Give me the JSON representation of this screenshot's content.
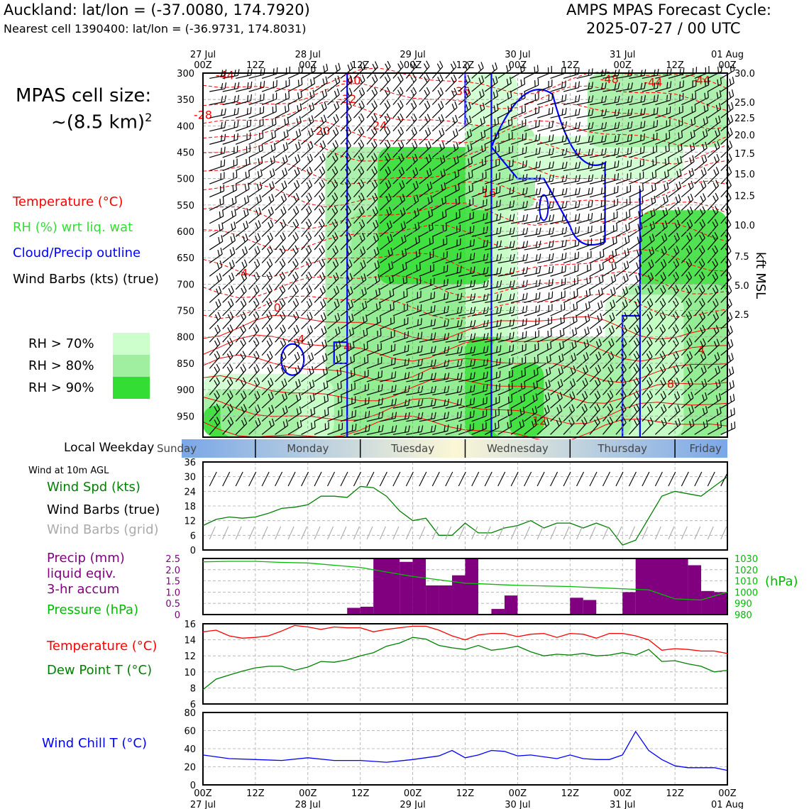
{
  "header": {
    "location_line": "Auckland: lat/lon = (-37.0080, 174.7920)",
    "cell_line": "Nearest cell 1390400: lat/lon = (-36.9731, 174.8031)",
    "cycle_title": "AMPS MPAS Forecast Cycle:",
    "cycle_value": "2025-07-27 / 00 UTC"
  },
  "side": {
    "cell_size_label": "MPAS cell size:",
    "cell_size_value": "~(8.5 km)",
    "cell_size_exp": "2",
    "legend_temp": "Temperature (°C)",
    "legend_rh": "RH (%) wrt liq. wat",
    "legend_cloud": "Cloud/Precip outline",
    "legend_wind": "Wind Barbs (kts) (true)",
    "rh70": "RH > 70%",
    "rh80": "RH > 80%",
    "rh90": "RH > 90%",
    "local_weekday": "Local Weekday",
    "wind_10m": "Wind at 10m AGL",
    "wind_spd": "Wind Spd (kts)",
    "wind_barbs_true": "Wind Barbs (true)",
    "wind_barbs_grid": "Wind Barbs (grid)",
    "precip1": "Precip (mm)",
    "precip2": "liquid eqiv.",
    "precip3": "3-hr accum",
    "pressure": "Pressure (hPa)",
    "temp": "Temperature (°C)",
    "dewpt": "Dew Point T (°C)",
    "windchill": "Wind Chill T (°C)",
    "hpa_unit": "(hPa)",
    "kft_unit": "kft MSL"
  },
  "colors": {
    "temp": "#ff0000",
    "rh_text": "#33dd33",
    "cloud": "#0000ff",
    "green_line": "#008000",
    "precip": "#800080",
    "rh70": "#ccffcc",
    "rh80": "#a0eea0",
    "rh90": "#33dd33",
    "weekday_blue": "#7aa7e8",
    "weekday_cream": "#fbf7d6"
  },
  "chart_data": [
    {
      "type": "area",
      "panel": "cross-section",
      "x_ticks_top": [
        {
          "day": "27 Jul",
          "hour": "00Z"
        },
        {
          "day": "",
          "hour": "12Z"
        },
        {
          "day": "28 Jul",
          "hour": "00Z"
        },
        {
          "day": "",
          "hour": "12Z"
        },
        {
          "day": "29 Jul",
          "hour": "00Z"
        },
        {
          "day": "",
          "hour": "12Z"
        },
        {
          "day": "30 Jul",
          "hour": "00Z"
        },
        {
          "day": "",
          "hour": "12Z"
        },
        {
          "day": "31 Jul",
          "hour": "00Z"
        },
        {
          "day": "",
          "hour": "12Z"
        },
        {
          "day": "01 Aug",
          "hour": "00Z"
        }
      ],
      "xlim_hours": [
        0,
        120
      ],
      "y_pressure_hPa": [
        300,
        350,
        400,
        450,
        500,
        550,
        600,
        650,
        700,
        750,
        800,
        850,
        900,
        950
      ],
      "ylim_hPa": [
        990,
        300
      ],
      "y_kft_ticks": [
        {
          "label": "30.0",
          "hPa": 300
        },
        {
          "label": "25.0",
          "hPa": 355
        },
        {
          "label": "22.5",
          "hPa": 385
        },
        {
          "label": "20.0",
          "hPa": 417
        },
        {
          "label": "17.5",
          "hPa": 452
        },
        {
          "label": "15.0",
          "hPa": 491
        },
        {
          "label": "12.5",
          "hPa": 532
        },
        {
          "label": "10.0",
          "hPa": 588
        },
        {
          "label": "7.5",
          "hPa": 647
        },
        {
          "label": "5.0",
          "hPa": 702
        },
        {
          "label": "2.5",
          "hPa": 757
        }
      ],
      "temp_contour_labels": [
        {
          "text": "-44",
          "x_h": 5,
          "p": 305
        },
        {
          "text": "-40",
          "x_h": 34,
          "p": 315
        },
        {
          "text": "-32",
          "x_h": 33,
          "p": 350
        },
        {
          "text": "-36",
          "x_h": 59,
          "p": 335
        },
        {
          "text": "-48",
          "x_h": 93,
          "p": 312
        },
        {
          "text": "-44",
          "x_h": 103,
          "p": 318
        },
        {
          "text": "-44",
          "x_h": 114,
          "p": 314
        },
        {
          "text": "-28",
          "x_h": 0,
          "p": 380
        },
        {
          "text": "-24",
          "x_h": 40,
          "p": 400
        },
        {
          "text": "-20",
          "x_h": 27,
          "p": 410
        },
        {
          "text": "-16",
          "x_h": 65,
          "p": 528
        },
        {
          "text": "-8",
          "x_h": 93,
          "p": 653
        },
        {
          "text": "-4",
          "x_h": 9,
          "p": 680
        },
        {
          "text": "0",
          "x_h": 17,
          "p": 745
        },
        {
          "text": "4",
          "x_h": 33,
          "p": 820
        },
        {
          "text": "-4",
          "x_h": 22,
          "p": 805
        },
        {
          "text": "4",
          "x_h": 114,
          "p": 825
        },
        {
          "text": "8",
          "x_h": 107,
          "p": 890
        },
        {
          "text": "12",
          "x_h": 77,
          "p": 960
        }
      ]
    },
    {
      "type": "line",
      "panel": "weekday",
      "labels": [
        "Sunday",
        "Monday",
        "Tuesday",
        "Wednesday",
        "Thursday",
        "Friday"
      ],
      "day_boundaries_h": [
        12,
        36,
        60,
        84,
        108
      ]
    },
    {
      "type": "line",
      "panel": "wind",
      "xlim_hours": [
        0,
        120
      ],
      "ylim": [
        0,
        36
      ],
      "y_ticks": [
        0,
        6,
        12,
        18,
        24,
        30,
        36
      ],
      "series": [
        {
          "name": "Wind Spd (kts)",
          "x_hours": [
            0,
            3,
            6,
            9,
            12,
            15,
            18,
            21,
            24,
            27,
            30,
            33,
            36,
            39,
            42,
            45,
            48,
            51,
            54,
            57,
            60,
            63,
            66,
            69,
            72,
            75,
            78,
            81,
            84,
            87,
            90,
            93,
            96,
            99,
            102,
            105,
            108,
            111,
            114,
            117,
            120
          ],
          "values": [
            10,
            12.5,
            13.5,
            13,
            13.5,
            15,
            17,
            17.5,
            18.5,
            22,
            22,
            21.5,
            26,
            25.5,
            22,
            16,
            12,
            13,
            6,
            6,
            11,
            7,
            7,
            9,
            10,
            12,
            9,
            11,
            11,
            9,
            11,
            9,
            2,
            4,
            13,
            22,
            24,
            23,
            22,
            26,
            30
          ]
        }
      ]
    },
    {
      "type": "bar",
      "panel": "precip-pressure",
      "xlim_hours": [
        0,
        120
      ],
      "ylim_precip_mm": [
        0,
        2.5
      ],
      "y_ticks_precip": [
        "2.5",
        "2.0",
        "1.5",
        "1.0",
        "0.5",
        "0"
      ],
      "ylim_pressure_hPa": [
        980,
        1030
      ],
      "y_ticks_pressure": [
        "1030",
        "1020",
        "1010",
        "1000",
        "990",
        "980"
      ],
      "precip_bars": [
        {
          "t_start": 33,
          "t_end": 36,
          "mm": 0.3
        },
        {
          "t_start": 36,
          "t_end": 39,
          "mm": 0.35
        },
        {
          "t_start": 39,
          "t_end": 45,
          "mm": 2.5
        },
        {
          "t_start": 45,
          "t_end": 48,
          "mm": 2.35
        },
        {
          "t_start": 48,
          "t_end": 51,
          "mm": 2.5
        },
        {
          "t_start": 51,
          "t_end": 54,
          "mm": 1.3
        },
        {
          "t_start": 54,
          "t_end": 57,
          "mm": 1.3
        },
        {
          "t_start": 57,
          "t_end": 60,
          "mm": 1.75
        },
        {
          "t_start": 60,
          "t_end": 63,
          "mm": 2.5
        },
        {
          "t_start": 66,
          "t_end": 69,
          "mm": 0.25
        },
        {
          "t_start": 69,
          "t_end": 72,
          "mm": 0.85
        },
        {
          "t_start": 84,
          "t_end": 87,
          "mm": 0.75
        },
        {
          "t_start": 87,
          "t_end": 90,
          "mm": 0.65
        },
        {
          "t_start": 96,
          "t_end": 99,
          "mm": 1.0
        },
        {
          "t_start": 99,
          "t_end": 111,
          "mm": 2.5
        },
        {
          "t_start": 111,
          "t_end": 114,
          "mm": 2.2
        },
        {
          "t_start": 114,
          "t_end": 117,
          "mm": 1.05
        },
        {
          "t_start": 117,
          "t_end": 120,
          "mm": 1.0
        }
      ],
      "series": [
        {
          "name": "Pressure (hPa)",
          "x_hours": [
            0,
            6,
            12,
            18,
            24,
            30,
            36,
            42,
            48,
            54,
            60,
            66,
            72,
            78,
            84,
            90,
            96,
            102,
            108,
            114,
            120
          ],
          "values": [
            1027,
            1027.5,
            1027.5,
            1026.5,
            1026,
            1024,
            1022,
            1018,
            1014,
            1011,
            1008,
            1007,
            1006,
            1005.5,
            1005,
            1004,
            1003,
            1002,
            994,
            993,
            1000
          ]
        }
      ]
    },
    {
      "type": "line",
      "panel": "temperature",
      "xlim_hours": [
        0,
        120
      ],
      "ylim": [
        6,
        16
      ],
      "y_ticks": [
        6,
        8,
        10,
        12,
        14,
        16
      ],
      "series": [
        {
          "name": "Temperature (°C)",
          "x_hours": [
            0,
            3,
            6,
            9,
            12,
            15,
            18,
            21,
            24,
            27,
            30,
            33,
            36,
            39,
            42,
            45,
            48,
            51,
            54,
            57,
            60,
            63,
            66,
            69,
            72,
            75,
            78,
            81,
            84,
            87,
            90,
            93,
            96,
            99,
            102,
            105,
            108,
            111,
            114,
            117,
            120
          ],
          "values": [
            15,
            15.2,
            14.5,
            14.2,
            14.3,
            14.5,
            15.1,
            15.8,
            15.6,
            15.3,
            15.6,
            15.5,
            15.5,
            15,
            15.3,
            15.5,
            15.7,
            15.7,
            15.2,
            14.5,
            14,
            14.6,
            14.8,
            14.8,
            14.4,
            14.7,
            14.8,
            14.3,
            14.8,
            14.7,
            14.2,
            14.8,
            14.8,
            14.5,
            14,
            12.7,
            12.9,
            12.8,
            12.6,
            12.6,
            12.3
          ]
        },
        {
          "name": "Dew Point T (°C)",
          "x_hours": [
            0,
            3,
            6,
            9,
            12,
            15,
            18,
            21,
            24,
            27,
            30,
            33,
            36,
            39,
            42,
            45,
            48,
            51,
            54,
            57,
            60,
            63,
            66,
            69,
            72,
            75,
            78,
            81,
            84,
            87,
            90,
            93,
            96,
            99,
            102,
            105,
            108,
            111,
            114,
            117,
            120
          ],
          "values": [
            7.8,
            9.1,
            9.6,
            10.1,
            10.5,
            10.7,
            10.7,
            10.2,
            10.6,
            11.3,
            11.2,
            11.5,
            12,
            12.4,
            13.2,
            13.6,
            14.3,
            14.1,
            13.3,
            13,
            12.8,
            13.3,
            12.7,
            12.9,
            13.2,
            12.5,
            12,
            12.2,
            12.1,
            12.3,
            12,
            12.1,
            12.4,
            12.1,
            12.8,
            11.3,
            11.4,
            11,
            10.7,
            10,
            10.2
          ]
        }
      ]
    },
    {
      "type": "line",
      "panel": "wind-chill",
      "xlim_hours": [
        0,
        120
      ],
      "ylim": [
        0,
        80
      ],
      "y_ticks": [
        0,
        20,
        40,
        60,
        80
      ],
      "x_ticks_bottom": [
        {
          "hour": "00Z",
          "day": "27 Jul"
        },
        {
          "hour": "12Z",
          "day": ""
        },
        {
          "hour": "00Z",
          "day": "28 Jul"
        },
        {
          "hour": "12Z",
          "day": ""
        },
        {
          "hour": "00Z",
          "day": "29 Jul"
        },
        {
          "hour": "12Z",
          "day": ""
        },
        {
          "hour": "00Z",
          "day": "30 Jul"
        },
        {
          "hour": "12Z",
          "day": ""
        },
        {
          "hour": "00Z",
          "day": "31 Jul"
        },
        {
          "hour": "12Z",
          "day": ""
        },
        {
          "hour": "00Z",
          "day": "01 Aug"
        }
      ],
      "series": [
        {
          "name": "Wind Chill T (°C)",
          "x_hours": [
            0,
            6,
            12,
            18,
            24,
            30,
            36,
            42,
            48,
            54,
            57,
            60,
            63,
            66,
            69,
            72,
            75,
            78,
            81,
            84,
            87,
            90,
            93,
            96,
            99,
            102,
            105,
            108,
            111,
            114,
            117,
            120
          ],
          "values": [
            33,
            29,
            28,
            27,
            30,
            27,
            27,
            25,
            28,
            32,
            38,
            30,
            33,
            38,
            37,
            32,
            33,
            31,
            29,
            33,
            29,
            28,
            28,
            33,
            59,
            38,
            28,
            21,
            19,
            19,
            19,
            16
          ]
        }
      ]
    }
  ]
}
